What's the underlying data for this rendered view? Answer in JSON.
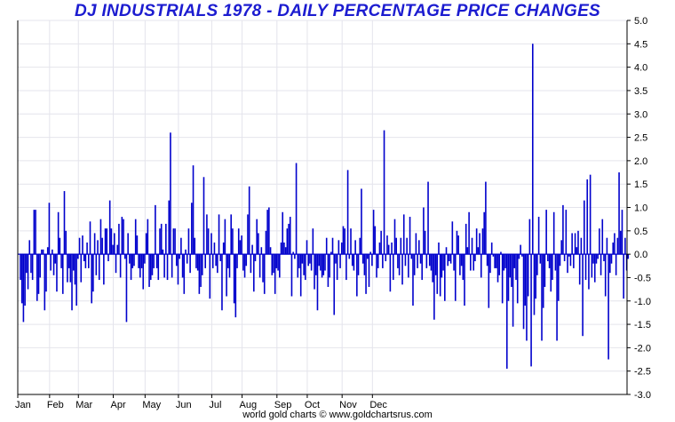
{
  "chart_data": {
    "type": "bar",
    "title": "DJ INDUSTRIALS 1978 - DAILY PERCENTAGE PRICE CHANGES",
    "footer": "world gold charts © www.goldchartsrus.com",
    "xlabel": "",
    "ylabel": "",
    "ylim": [
      -3.0,
      5.0
    ],
    "y_ticks": [
      "5.0",
      "4.5",
      "4.0",
      "3.5",
      "3.0",
      "2.5",
      "2.0",
      "1.5",
      "1.0",
      "0.5",
      "0.0",
      "-0.5",
      "-1.0",
      "-1.5",
      "-2.0",
      "-2.5",
      "-3.0"
    ],
    "x_tick_labels": [
      "Jan",
      "Feb",
      "Mar",
      "Apr",
      "May",
      "Jun",
      "Jul",
      "Aug",
      "Sep",
      "Oct",
      "Nov",
      "Dec"
    ],
    "grid": true,
    "colors": {
      "bars": "#0000cc",
      "title": "#1c1cd0",
      "grid": "#e4e4ec",
      "axis": "#000000"
    },
    "values": [
      -0.55,
      -1.05,
      -1.45,
      -1.1,
      -0.4,
      -0.75,
      0.3,
      -0.4,
      -0.55,
      0.95,
      0.95,
      -1.0,
      -0.85,
      -0.5,
      0.1,
      0.1,
      -1.2,
      -0.8,
      0.15,
      1.1,
      -0.35,
      0.1,
      -0.45,
      -0.2,
      -0.8,
      0.9,
      0.35,
      -0.3,
      -0.85,
      1.35,
      0.5,
      -0.6,
      -0.3,
      -0.6,
      -1.2,
      -0.35,
      -0.65,
      -1.1,
      -0.1,
      0.35,
      -0.6,
      0.4,
      -0.15,
      -0.3,
      0.25,
      -0.3,
      0.7,
      -1.05,
      -0.8,
      0.45,
      -0.45,
      0.3,
      -0.55,
      0.75,
      0.35,
      -0.65,
      0.55,
      0.55,
      -0.15,
      1.15,
      0.55,
      0.2,
      0.45,
      -0.4,
      0.2,
      0.65,
      -0.5,
      0.8,
      0.75,
      -0.1,
      -1.45,
      0.45,
      -0.2,
      -0.55,
      -0.3,
      -0.25,
      0.75,
      0.4,
      -0.3,
      -0.5,
      -0.3,
      -0.75,
      -0.2,
      0.45,
      0.75,
      -0.7,
      -0.55,
      -0.45,
      -0.3,
      1.05,
      -0.3,
      -0.55,
      0.55,
      0.65,
      0.1,
      -0.5,
      0.65,
      -0.55,
      1.15,
      2.6,
      -0.5,
      0.55,
      0.55,
      -0.25,
      -0.65,
      -0.1,
      0.35,
      -0.5,
      -0.85,
      0.1,
      -0.2,
      0.55,
      -0.4,
      1.1,
      1.9,
      0.35,
      -0.3,
      -0.35,
      -0.85,
      -0.7,
      -0.45,
      1.65,
      -0.3,
      0.85,
      0.55,
      -0.95,
      0.45,
      -0.3,
      0.25,
      -0.25,
      -0.4,
      0.85,
      -0.15,
      -1.2,
      0.25,
      0.75,
      -0.9,
      -0.3,
      -0.5,
      0.85,
      0.55,
      -1.05,
      -1.35,
      -0.3,
      0.55,
      0.3,
      0.4,
      -0.35,
      -0.5,
      -0.25,
      0.85,
      1.45,
      -0.4,
      0.2,
      -0.8,
      -0.15,
      0.75,
      0.45,
      -0.5,
      0.15,
      -0.6,
      -0.85,
      0.5,
      0.95,
      1.0,
      0.15,
      -0.45,
      -0.4,
      -0.85,
      -0.3,
      -0.35,
      -0.5,
      0.25,
      0.9,
      0.25,
      0.15,
      0.55,
      0.65,
      0.8,
      -0.9,
      0.05,
      -0.1,
      1.95,
      -0.5,
      -0.3,
      -0.9,
      -0.2,
      -0.45,
      -0.55,
      0.3,
      -0.25,
      -0.2,
      -0.35,
      0.55,
      -0.75,
      -0.45,
      -1.2,
      -0.25,
      -0.35,
      -0.5,
      -0.45,
      -0.35,
      0.35,
      -0.7,
      -0.5,
      0.05,
      0.35,
      -1.3,
      -0.2,
      -0.55,
      0.3,
      -0.3,
      0.25,
      0.6,
      0.55,
      -0.55,
      1.8,
      -0.1,
      0.55,
      -0.25,
      -0.35,
      0.3,
      -0.9,
      -0.45,
      0.35,
      1.4,
      -0.2,
      -0.45,
      -0.85,
      -0.1,
      -0.7,
      0.05,
      -0.25,
      0.95,
      0.6,
      -0.5,
      -0.3,
      0.25,
      0.5,
      -0.3,
      2.65,
      -0.15,
      0.4,
      0.2,
      -0.8,
      0.25,
      -0.55,
      0.75,
      0.35,
      -0.3,
      -0.45,
      0.35,
      -0.65,
      0.85,
      -0.25,
      0.35,
      -0.5,
      0.8,
      -0.1,
      -1.1,
      -0.45,
      0.45,
      -0.3,
      0.3,
      -0.2,
      -0.55,
      1.0,
      0.5,
      -0.3,
      1.55,
      -0.25,
      -0.35,
      -0.6,
      -1.4,
      -0.45,
      -0.85,
      0.25,
      -0.9,
      -0.5,
      -0.35,
      -1.0,
      0.15,
      -0.25,
      -0.15,
      -0.2,
      0.7,
      -0.35,
      -1.0,
      0.5,
      0.4,
      -0.45,
      -0.25,
      -0.55,
      -1.1,
      0.65,
      0.15,
      0.9,
      -0.35,
      0.35,
      -0.35,
      -0.15,
      0.55,
      0.15,
      0.45,
      -0.5,
      0.55,
      0.9,
      1.55,
      -0.25,
      -1.15,
      -0.4,
      0.25,
      -0.05,
      -0.3,
      -0.3,
      -0.6,
      -0.45,
      0.05,
      -1.05,
      -0.35,
      -0.3,
      -2.45,
      -1.0,
      -0.5,
      -0.7,
      -1.55,
      -0.3,
      -0.55,
      -1.05,
      -0.1,
      0.2,
      -0.05,
      -1.6,
      -1.1,
      -1.85,
      -0.9,
      0.75,
      -2.4,
      4.5,
      -1.3,
      -0.95,
      -0.45,
      0.8,
      -0.2,
      -1.85,
      -1.15,
      -0.7,
      0.95,
      -0.15,
      -0.3,
      -0.8,
      -0.55,
      0.9,
      -0.35,
      -1.85,
      -1.0,
      -0.25,
      0.3,
      1.05,
      -0.15,
      0.95,
      -0.4,
      -0.05,
      -0.25,
      0.45,
      -0.3,
      0.45,
      0.15,
      0.5,
      -0.65,
      0.35,
      -1.75,
      1.15,
      -0.55,
      1.6,
      -0.75,
      1.7,
      -0.5,
      -0.2,
      -0.6,
      -0.2,
      -0.1,
      0.55,
      -0.45,
      0.75,
      -0.15,
      -0.9,
      0.35,
      -2.25,
      -0.4,
      -0.2,
      0.25,
      0.45,
      -0.45,
      0.35,
      1.75,
      0.5,
      0.95,
      -0.95,
      0.35,
      -0.35,
      -0.1
    ]
  }
}
